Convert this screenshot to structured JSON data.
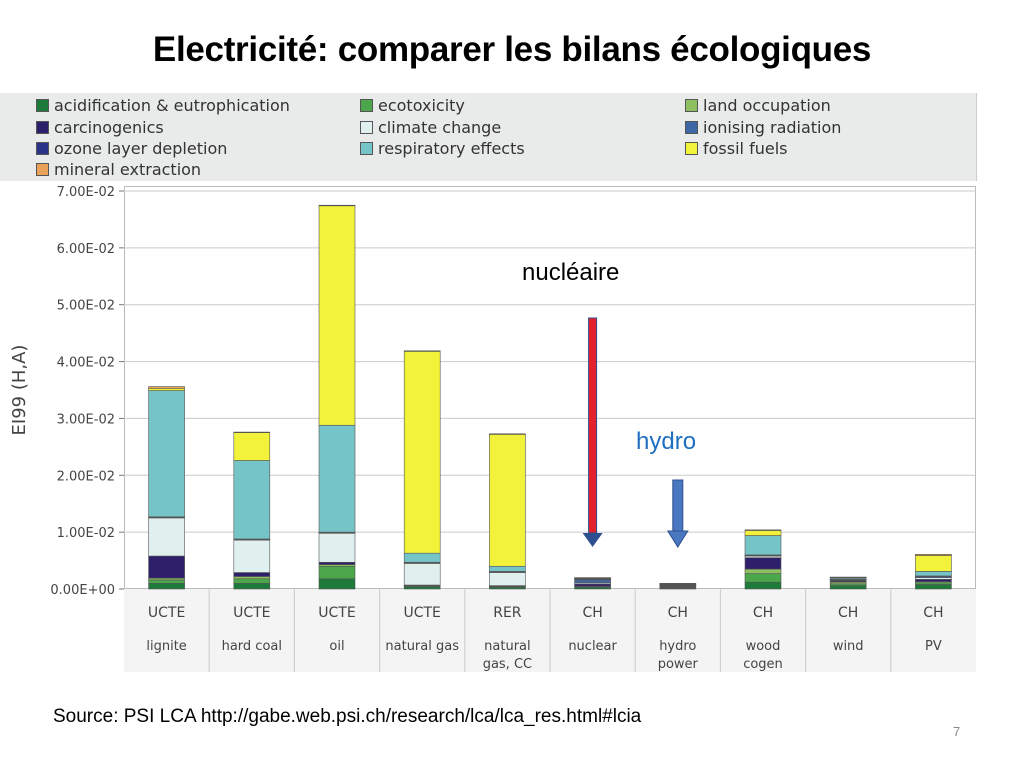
{
  "slide": {
    "title": "Electricité: comparer les bilans écologiques",
    "source": "Source: PSI LCA http://gabe.web.psi.ch/research/lca/lca_res.html#lcia",
    "page_number": "7"
  },
  "annotations": {
    "nuclear_label": "nucléaire",
    "hydro_label": "hydro",
    "nuclear_label_color": "#000000",
    "hydro_label_color": "#1f6fc0",
    "nuclear_arrow_color": "#e4202a",
    "nuclear_arrow_outline": "#2d4f8f",
    "hydro_arrow_color": "#4a78c0"
  },
  "chart_data": {
    "type": "bar",
    "stacked": true,
    "ylabel": "EI99 (H,A)",
    "xlabel": "",
    "ylim": [
      0,
      0.07
    ],
    "yticks": [
      "0.00E+00",
      "1.00E-02",
      "2.00E-02",
      "3.00E-02",
      "4.00E-02",
      "5.00E-02",
      "6.00E-02",
      "7.00E-02"
    ],
    "ytick_values": [
      0,
      0.01,
      0.02,
      0.03,
      0.04,
      0.05,
      0.06,
      0.07
    ],
    "grid": true,
    "legend_position": "top",
    "categories": [
      {
        "top": "UCTE",
        "bottom": [
          "lignite"
        ]
      },
      {
        "top": "UCTE",
        "bottom": [
          "hard coal"
        ]
      },
      {
        "top": "UCTE",
        "bottom": [
          "oil"
        ]
      },
      {
        "top": "UCTE",
        "bottom": [
          "natural gas"
        ]
      },
      {
        "top": "RER",
        "bottom": [
          "natural",
          "gas, CC"
        ]
      },
      {
        "top": "CH",
        "bottom": [
          "nuclear"
        ]
      },
      {
        "top": "CH",
        "bottom": [
          "hydro",
          "power"
        ]
      },
      {
        "top": "CH",
        "bottom": [
          "wood",
          "cogen"
        ]
      },
      {
        "top": "CH",
        "bottom": [
          "wind"
        ]
      },
      {
        "top": "CH",
        "bottom": [
          "PV"
        ]
      }
    ],
    "series": [
      {
        "name": "acidification & eutrophication",
        "color": "#1d7a3a",
        "values": [
          0.001,
          0.001,
          0.0018,
          0.0004,
          0.0003,
          0.0003,
          0.0001,
          0.0012,
          0.0006,
          0.0008
        ]
      },
      {
        "name": "ecotoxicity",
        "color": "#4ca64c",
        "values": [
          0.0006,
          0.0008,
          0.0022,
          0.0001,
          0.0001,
          0.0001,
          0.0001,
          0.0015,
          0.0003,
          0.0003
        ]
      },
      {
        "name": "land occupation",
        "color": "#8cc060",
        "values": [
          0.0003,
          0.0004,
          0.0003,
          0.0001,
          0.0001,
          0.0001,
          0.0001,
          0.0008,
          0.0003,
          0.0002
        ]
      },
      {
        "name": "carcinogenics",
        "color": "#2e1f6b",
        "values": [
          0.0039,
          0.0007,
          0.0004,
          0.0001,
          0.0001,
          0.0004,
          0.0001,
          0.002,
          0.0002,
          0.0004
        ]
      },
      {
        "name": "climate change",
        "color": "#dff0ef",
        "values": [
          0.0067,
          0.0057,
          0.0051,
          0.0038,
          0.0023,
          0.0002,
          0.0001,
          0.0003,
          0.0001,
          0.0003
        ]
      },
      {
        "name": "ionising radiation",
        "color": "#3f67a8",
        "values": [
          0.0001,
          0.0001,
          0.0001,
          0.0001,
          0.0001,
          0.0005,
          0.0001,
          0.0001,
          0.0001,
          0.0002
        ]
      },
      {
        "name": "ozone layer depletion",
        "color": "#2a3487",
        "values": [
          0.0001,
          0.0001,
          0.0001,
          0.0001,
          0.0001,
          0.0001,
          0.0001,
          0.0001,
          0.0001,
          0.0001
        ]
      },
      {
        "name": "respiratory effects",
        "color": "#75c4c8",
        "values": [
          0.0222,
          0.0138,
          0.0188,
          0.0016,
          0.0009,
          0.0001,
          0.0001,
          0.0034,
          0.0002,
          0.0008
        ]
      },
      {
        "name": "fossil fuels",
        "color": "#f2f23a",
        "values": [
          0.0004,
          0.0049,
          0.0386,
          0.0355,
          0.0232,
          0.0001,
          0.0001,
          0.0009,
          0.0001,
          0.0028
        ]
      },
      {
        "name": "mineral extraction",
        "color": "#e8a25a",
        "values": [
          0.0003,
          0.0001,
          0.0001,
          0.0001,
          0.0001,
          0.0001,
          0.0001,
          0.0001,
          0.0001,
          0.0002
        ]
      }
    ]
  },
  "legend": {
    "items": [
      {
        "label": "acidification & eutrophication",
        "color": "#1d7a3a"
      },
      {
        "label": "carcinogenics",
        "color": "#2e1f6b"
      },
      {
        "label": "ozone layer depletion",
        "color": "#2a3487"
      },
      {
        "label": "mineral extraction",
        "color": "#e8a25a"
      },
      {
        "label": "ecotoxicity",
        "color": "#4ca64c"
      },
      {
        "label": "climate change",
        "color": "#dff0ef"
      },
      {
        "label": "respiratory effects",
        "color": "#75c4c8"
      },
      {
        "label": "land occupation",
        "color": "#8cc060"
      },
      {
        "label": "ionising radiation",
        "color": "#3f67a8"
      },
      {
        "label": "fossil fuels",
        "color": "#f2f23a"
      }
    ]
  }
}
